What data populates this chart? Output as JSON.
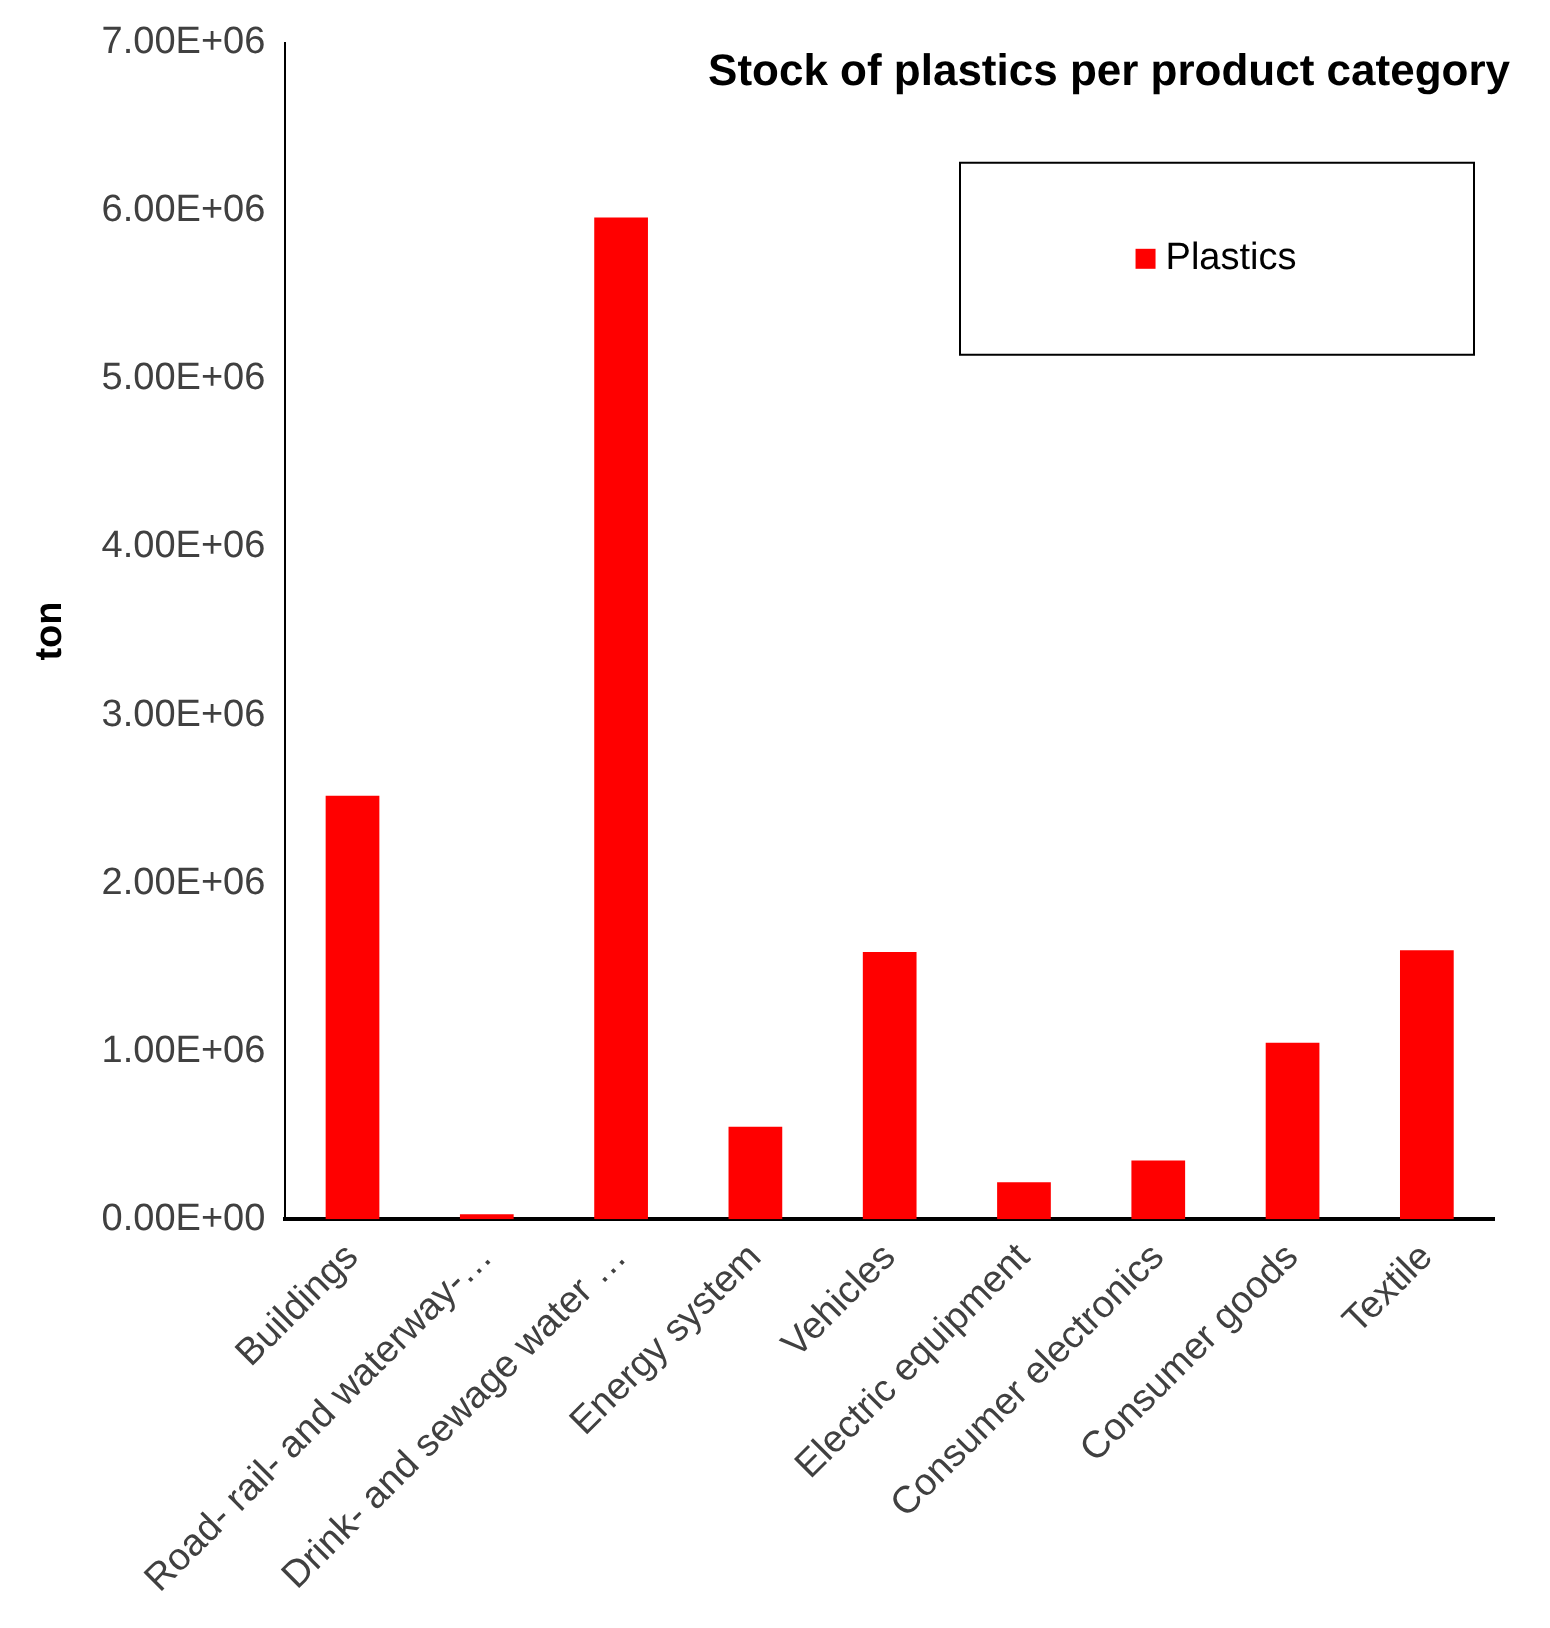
{
  "chart_data": {
    "type": "bar",
    "title": "Stock of plastics per product category",
    "ylabel": "ton",
    "categories": [
      "Buildings",
      "Road- rail- and waterway-…",
      "Drink- and sewage water …",
      "Energy system",
      "Vehicles",
      "Electric equipment",
      "Consumer electronics",
      "Consumer goods",
      "Textile"
    ],
    "series": [
      {
        "name": "Plastics",
        "color": "#ff0000",
        "values": [
          2520000,
          30000,
          5960000,
          550000,
          1590000,
          220000,
          350000,
          1050000,
          1600000
        ]
      }
    ],
    "ylim": [
      0,
      7000000
    ],
    "yticks": [
      {
        "value": 0,
        "label": "0.00E+00"
      },
      {
        "value": 1000000,
        "label": "1.00E+06"
      },
      {
        "value": 2000000,
        "label": "2.00E+06"
      },
      {
        "value": 3000000,
        "label": "3.00E+06"
      },
      {
        "value": 4000000,
        "label": "4.00E+06"
      },
      {
        "value": 5000000,
        "label": "5.00E+06"
      },
      {
        "value": 6000000,
        "label": "6.00E+06"
      },
      {
        "value": 7000000,
        "label": "7.00E+06"
      }
    ],
    "grid": false,
    "legend": "top right"
  }
}
